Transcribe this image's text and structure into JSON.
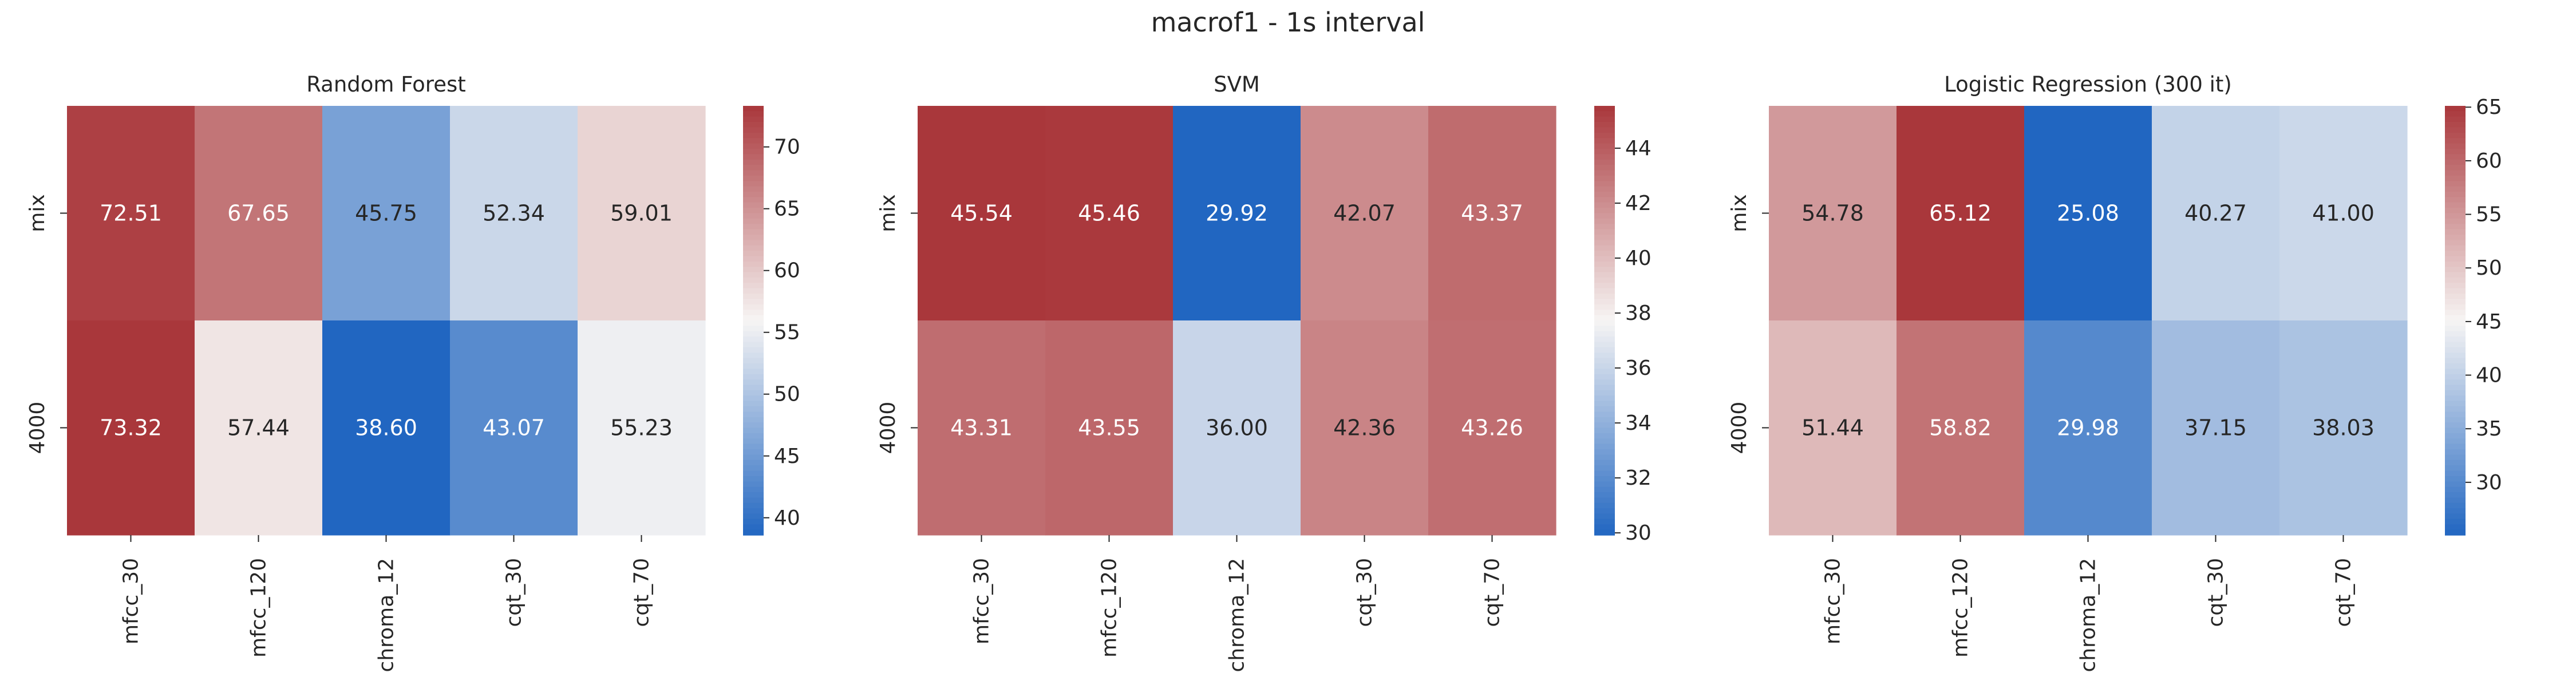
{
  "figure": {
    "title": "macrof1 - 1s interval"
  },
  "colors": {
    "low": "#2166c1",
    "mid": "#f7f5f4",
    "high": "#a9373b",
    "text_dark": "#262626",
    "text_light": "#ffffff"
  },
  "chart_data": [
    {
      "type": "heatmap",
      "title": "Random Forest",
      "rows": [
        "mix",
        "4000"
      ],
      "columns": [
        "mfcc_30",
        "mfcc_120",
        "chroma_12",
        "cqt_30",
        "cqt_70"
      ],
      "values": [
        [
          72.51,
          67.65,
          45.75,
          52.34,
          59.01
        ],
        [
          73.32,
          57.44,
          38.6,
          43.07,
          55.23
        ]
      ],
      "color_range": [
        38.6,
        73.32
      ],
      "colorbar_ticks": [
        40,
        45,
        50,
        55,
        60,
        65,
        70
      ]
    },
    {
      "type": "heatmap",
      "title": "SVM",
      "rows": [
        "mix",
        "4000"
      ],
      "columns": [
        "mfcc_30",
        "mfcc_120",
        "chroma_12",
        "cqt_30",
        "cqt_70"
      ],
      "values": [
        [
          45.54,
          45.46,
          29.92,
          42.07,
          43.37
        ],
        [
          43.31,
          43.55,
          36.0,
          42.36,
          43.26
        ]
      ],
      "color_range": [
        29.92,
        45.54
      ],
      "colorbar_ticks": [
        30,
        32,
        34,
        36,
        38,
        40,
        42,
        44
      ]
    },
    {
      "type": "heatmap",
      "title": "Logistic Regression (300 it)",
      "rows": [
        "mix",
        "4000"
      ],
      "columns": [
        "mfcc_30",
        "mfcc_120",
        "chroma_12",
        "cqt_30",
        "cqt_70"
      ],
      "values": [
        [
          54.78,
          65.12,
          25.08,
          40.27,
          41.0
        ],
        [
          51.44,
          58.82,
          29.98,
          37.15,
          38.03
        ]
      ],
      "color_range": [
        25.08,
        65.12
      ],
      "colorbar_ticks": [
        30,
        35,
        40,
        45,
        50,
        55,
        60,
        65
      ]
    }
  ]
}
